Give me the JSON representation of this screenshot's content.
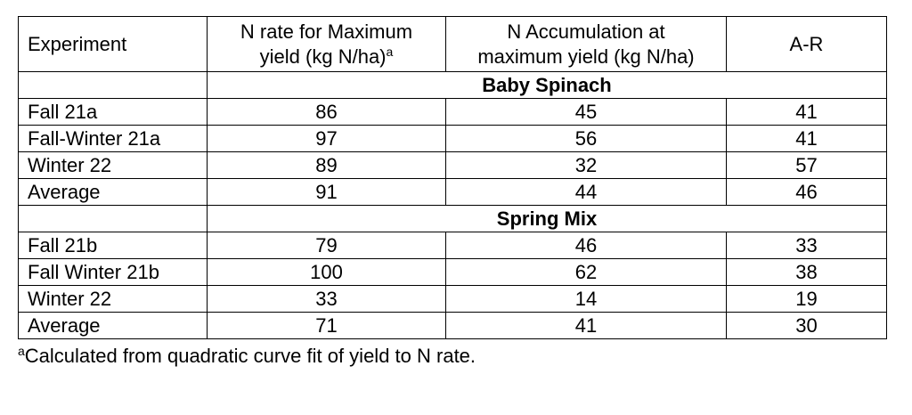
{
  "table": {
    "header": [
      [
        "Experiment"
      ],
      [
        "N rate for Maximum",
        "yield (kg N/ha)"
      ],
      [
        "N Accumulation at",
        "maximum yield (kg N/ha)"
      ],
      [
        "A-R"
      ]
    ],
    "header_superscript": "a",
    "sections": [
      {
        "title": "Baby Spinach",
        "rows": [
          [
            "Fall 21a",
            86,
            45,
            41
          ],
          [
            "Fall-Winter 21a",
            97,
            56,
            41
          ],
          [
            "Winter 22",
            89,
            32,
            57
          ],
          [
            "Average",
            91,
            44,
            46
          ]
        ]
      },
      {
        "title": "Spring Mix",
        "rows": [
          [
            "Fall 21b",
            79,
            46,
            33
          ],
          [
            "Fall Winter 21b",
            100,
            62,
            38
          ],
          [
            "Winter 22",
            33,
            14,
            19
          ],
          [
            "Average",
            71,
            41,
            30
          ]
        ]
      }
    ]
  },
  "footnote": {
    "marker": "a",
    "text": "Calculated from quadratic curve fit of yield to N rate."
  }
}
